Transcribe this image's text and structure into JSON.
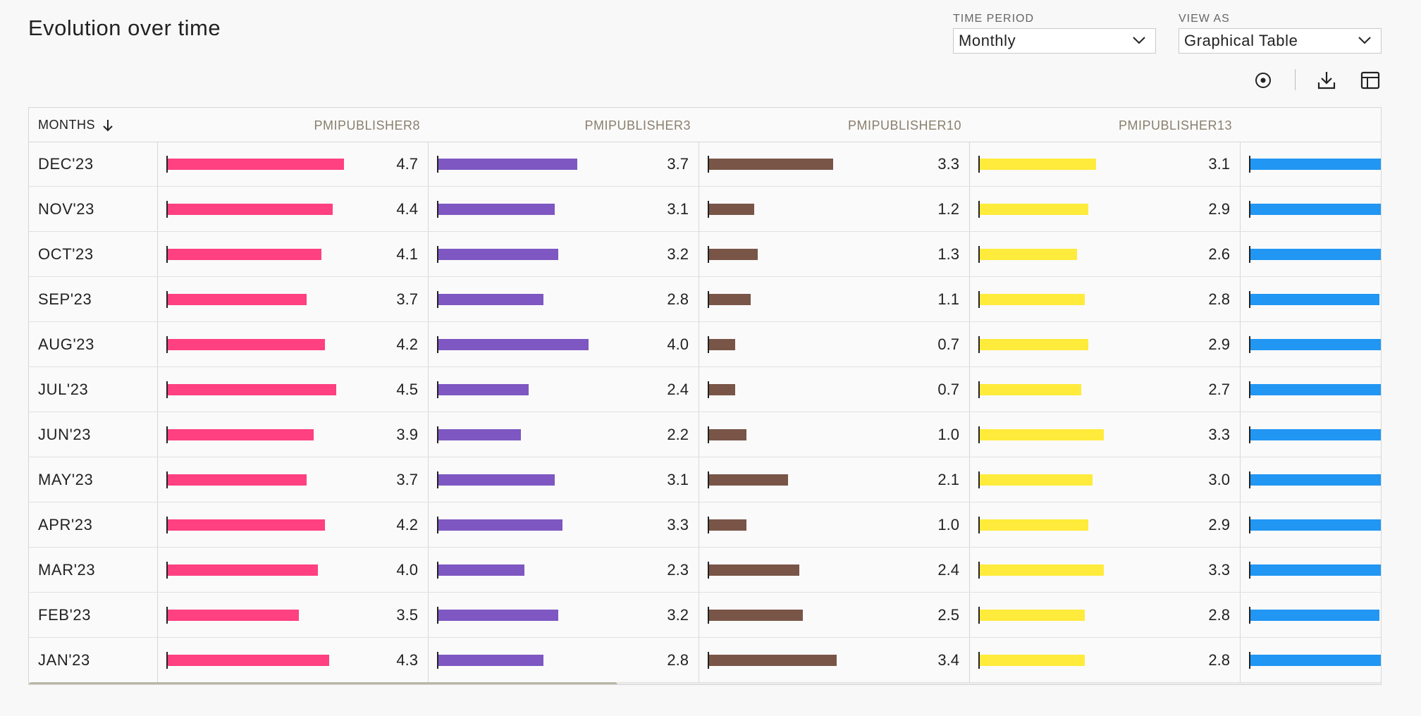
{
  "header": {
    "title": "Evolution over time"
  },
  "controls": {
    "time_period": {
      "label": "TIME PERIOD",
      "value": "Monthly"
    },
    "view_as": {
      "label": "VIEW AS",
      "value": "Graphical Table"
    }
  },
  "toolbar": {
    "icons": [
      "radio-target-icon",
      "download-icon",
      "table-layout-icon"
    ]
  },
  "table": {
    "month_header": "MONTHS",
    "sort": "descending",
    "columns": [
      {
        "name": "PMIPUBLISHER8",
        "color": "#ff4081"
      },
      {
        "name": "PMIPUBLISHER3",
        "color": "#7e57c2"
      },
      {
        "name": "PMIPUBLISHER10",
        "color": "#795548"
      },
      {
        "name": "PMIPUBLISHER13",
        "color": "#ffeb3b"
      },
      {
        "name": "",
        "color": "#2196f3"
      }
    ],
    "rows": [
      {
        "month": "DEC'23",
        "values": [
          "4.7",
          "3.7",
          "3.3",
          "3.1"
        ]
      },
      {
        "month": "NOV'23",
        "values": [
          "4.4",
          "3.1",
          "1.2",
          "2.9"
        ]
      },
      {
        "month": "OCT'23",
        "values": [
          "4.1",
          "3.2",
          "1.3",
          "2.6"
        ]
      },
      {
        "month": "SEP'23",
        "values": [
          "3.7",
          "2.8",
          "1.1",
          "2.8"
        ]
      },
      {
        "month": "AUG'23",
        "values": [
          "4.2",
          "4.0",
          "0.7",
          "2.9"
        ]
      },
      {
        "month": "JUL'23",
        "values": [
          "4.5",
          "2.4",
          "0.7",
          "2.7"
        ]
      },
      {
        "month": "JUN'23",
        "values": [
          "3.9",
          "2.2",
          "1.0",
          "3.3"
        ]
      },
      {
        "month": "MAY'23",
        "values": [
          "3.7",
          "3.1",
          "2.1",
          "3.0"
        ]
      },
      {
        "month": "APR'23",
        "values": [
          "4.2",
          "3.3",
          "1.0",
          "2.9"
        ]
      },
      {
        "month": "MAR'23",
        "values": [
          "4.0",
          "2.3",
          "2.4",
          "3.3"
        ]
      },
      {
        "month": "FEB'23",
        "values": [
          "3.5",
          "3.2",
          "2.5",
          "2.8"
        ]
      },
      {
        "month": "JAN'23",
        "values": [
          "4.3",
          "2.8",
          "3.4",
          "2.8"
        ]
      }
    ],
    "fifth_column_bar_fraction": [
      1,
      1,
      1,
      0.98,
      1,
      1,
      1,
      1,
      1,
      1,
      0.98,
      1
    ],
    "scale": {
      "max_value": 4.7
    }
  },
  "scrollbar": {
    "position": "left"
  }
}
